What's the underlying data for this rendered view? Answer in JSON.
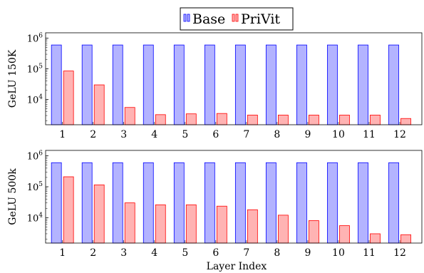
{
  "legend": {
    "items": [
      {
        "label": "Base",
        "fill": "#b3b3ff",
        "stroke": "#0000ff"
      },
      {
        "label": "PriVit",
        "fill": "#ffb3b3",
        "stroke": "#ff0000"
      }
    ]
  },
  "xlabel": "Layer Index",
  "chart_data": [
    {
      "type": "bar",
      "ylabel": "GeLU 150K",
      "yscale": "log",
      "ylim": [
        1500,
        1500000
      ],
      "yticks": [
        {
          "value": 10000,
          "label": "10^4"
        },
        {
          "value": 100000,
          "label": "10^5"
        },
        {
          "value": 1000000,
          "label": "10^6"
        }
      ],
      "categories": [
        "1",
        "2",
        "3",
        "4",
        "5",
        "6",
        "7",
        "8",
        "9",
        "10",
        "11",
        "12"
      ],
      "series": [
        {
          "name": "Base",
          "values": [
            600000,
            600000,
            600000,
            600000,
            600000,
            600000,
            600000,
            600000,
            600000,
            600000,
            600000,
            600000
          ]
        },
        {
          "name": "PriVit",
          "values": [
            85000,
            30000,
            5500,
            3200,
            3400,
            3500,
            3100,
            3100,
            3100,
            3100,
            3100,
            2400
          ]
        }
      ]
    },
    {
      "type": "bar",
      "ylabel": "GeLU 500k",
      "yscale": "log",
      "ylim": [
        1500,
        1500000
      ],
      "yticks": [
        {
          "value": 10000,
          "label": "10^4"
        },
        {
          "value": 100000,
          "label": "10^5"
        },
        {
          "value": 1000000,
          "label": "10^6"
        }
      ],
      "categories": [
        "1",
        "2",
        "3",
        "4",
        "5",
        "6",
        "7",
        "8",
        "9",
        "10",
        "11",
        "12"
      ],
      "series": [
        {
          "name": "Base",
          "values": [
            600000,
            600000,
            600000,
            600000,
            600000,
            600000,
            600000,
            600000,
            600000,
            600000,
            600000,
            600000
          ]
        },
        {
          "name": "PriVit",
          "values": [
            210000,
            115000,
            30000,
            26000,
            26000,
            23500,
            18000,
            12000,
            8000,
            5500,
            3000,
            2800
          ]
        }
      ]
    }
  ]
}
